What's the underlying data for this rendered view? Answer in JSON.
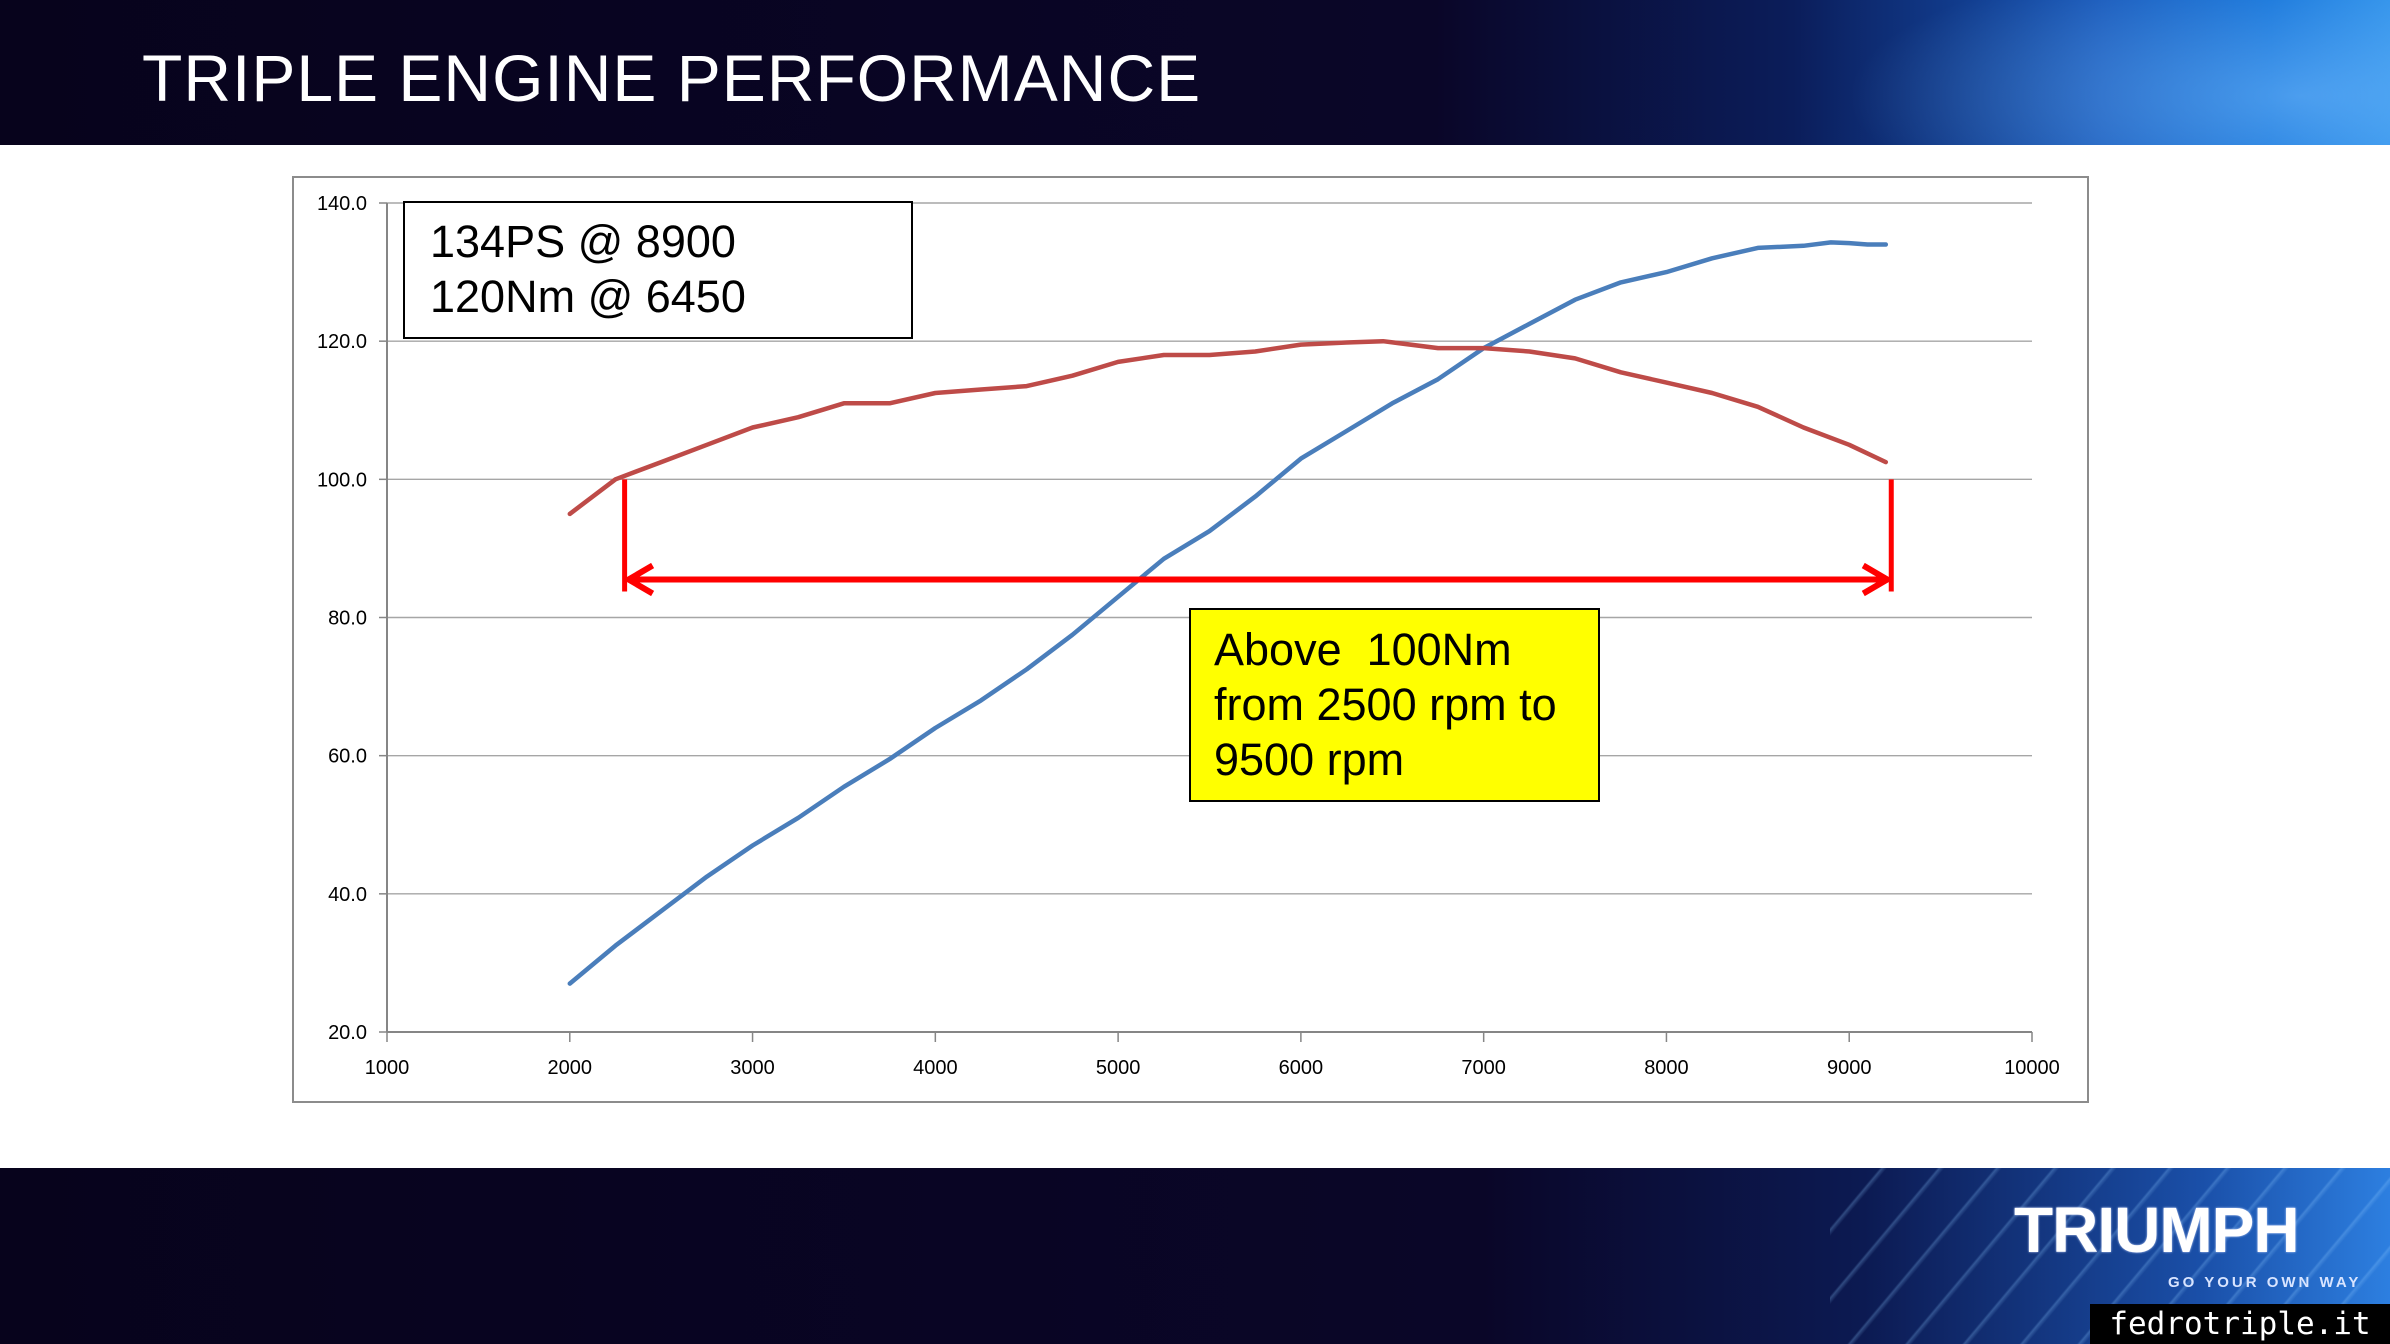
{
  "page": {
    "title": "TRIPLE ENGINE PERFORMANCE",
    "brand": "TRIUMPH",
    "tagline": "GO YOUR OWN WAY",
    "watermark": "fedrotriple.it"
  },
  "colors": {
    "header_bg": "#0a0628",
    "power_line": "#4a7ebb",
    "torque_line": "#be4b48",
    "range_arrow": "#ff0000",
    "callout_bg": "#ffff00"
  },
  "chart_data": {
    "type": "line",
    "title": "",
    "xlabel": "",
    "ylabel": "",
    "xlim": [
      1000,
      10000
    ],
    "ylim": [
      20,
      140
    ],
    "x_ticks": [
      "1000",
      "2000",
      "3000",
      "4000",
      "5000",
      "6000",
      "7000",
      "8000",
      "9000",
      "10000"
    ],
    "y_ticks": [
      "20.0",
      "40.0",
      "60.0",
      "80.0",
      "100.0",
      "120.0",
      "140.0"
    ],
    "grid": "horizontal",
    "series": [
      {
        "color": "#4a7ebb",
        "points": [
          [
            2000,
            27
          ],
          [
            2250,
            32.5
          ],
          [
            2500,
            37.5
          ],
          [
            2750,
            42.5
          ],
          [
            3000,
            47
          ],
          [
            3250,
            51
          ],
          [
            3500,
            55.5
          ],
          [
            3750,
            59.5
          ],
          [
            4000,
            64
          ],
          [
            4250,
            68
          ],
          [
            4500,
            72.5
          ],
          [
            4750,
            77.5
          ],
          [
            5000,
            83
          ],
          [
            5250,
            88.5
          ],
          [
            5500,
            92.5
          ],
          [
            5750,
            97.5
          ],
          [
            6000,
            103
          ],
          [
            6250,
            107
          ],
          [
            6500,
            111
          ],
          [
            6750,
            114.5
          ],
          [
            7000,
            119
          ],
          [
            7250,
            122.5
          ],
          [
            7500,
            126
          ],
          [
            7750,
            128.5
          ],
          [
            8000,
            130
          ],
          [
            8250,
            132
          ],
          [
            8500,
            133.5
          ],
          [
            8750,
            133.8
          ],
          [
            8900,
            134.3
          ],
          [
            9000,
            134.2
          ],
          [
            9100,
            134
          ],
          [
            9200,
            134
          ]
        ]
      },
      {
        "color": "#be4b48",
        "points": [
          [
            2000,
            95
          ],
          [
            2250,
            100
          ],
          [
            2500,
            102.5
          ],
          [
            2750,
            105
          ],
          [
            3000,
            107.5
          ],
          [
            3250,
            109
          ],
          [
            3500,
            111
          ],
          [
            3750,
            111
          ],
          [
            4000,
            112.5
          ],
          [
            4250,
            113
          ],
          [
            4500,
            113.5
          ],
          [
            4750,
            115
          ],
          [
            5000,
            117
          ],
          [
            5250,
            118
          ],
          [
            5500,
            118
          ],
          [
            5750,
            118.5
          ],
          [
            6000,
            119.5
          ],
          [
            6250,
            119.8
          ],
          [
            6450,
            120
          ],
          [
            6750,
            119
          ],
          [
            7000,
            119
          ],
          [
            7250,
            118.5
          ],
          [
            7500,
            117.5
          ],
          [
            7750,
            115.5
          ],
          [
            8000,
            114
          ],
          [
            8250,
            112.5
          ],
          [
            8500,
            110.5
          ],
          [
            8750,
            107.5
          ],
          [
            9000,
            105
          ],
          [
            9200,
            102.5
          ]
        ]
      }
    ],
    "annotations": [
      {
        "id": "peak_box",
        "lines": [
          "134PS @ 8900",
          "120Nm @ 6450"
        ]
      },
      {
        "id": "range_box",
        "lines": [
          "Above  100Nm",
          "from 2500 rpm to",
          "9500 rpm"
        ],
        "arrow_from_x": 2300,
        "arrow_to_x": 9230,
        "arrow_y": 85.5
      }
    ]
  }
}
